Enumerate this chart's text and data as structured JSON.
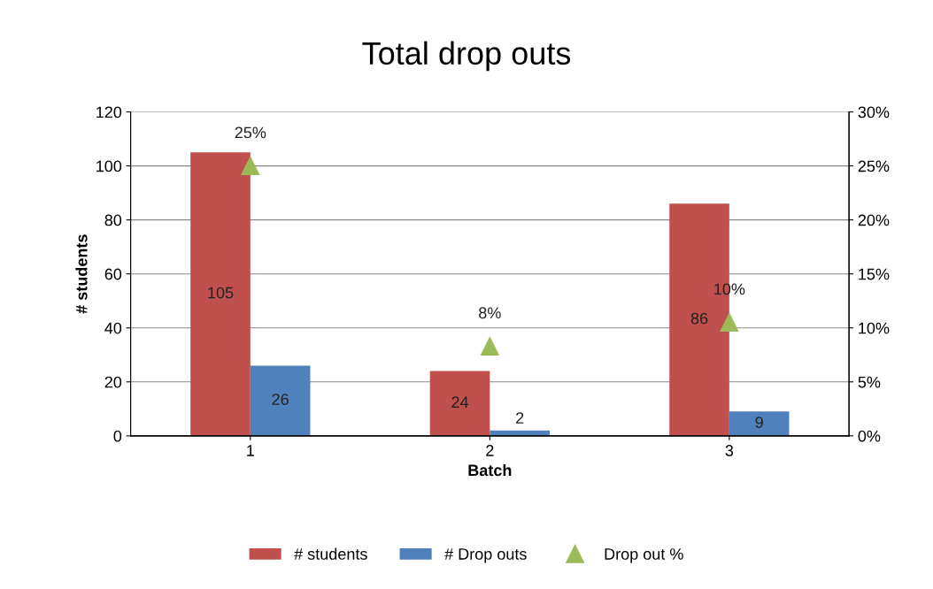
{
  "chart_data": {
    "type": "bar",
    "title": "Total drop outs",
    "xlabel": "Batch",
    "ylabel": "# students",
    "categories": [
      "1",
      "2",
      "3"
    ],
    "series": [
      {
        "name": "# students",
        "color": "#c0504d",
        "values": [
          105,
          24,
          86
        ],
        "value_labels": [
          "105",
          "24",
          "86"
        ]
      },
      {
        "name": "# Drop outs",
        "color": "#4f81bd",
        "values": [
          26,
          2,
          9
        ],
        "value_labels": [
          "26",
          "2",
          "9"
        ]
      },
      {
        "name": "Drop out %",
        "type": "scatter",
        "axis": "y2",
        "color": "#9bbb59",
        "values": [
          25,
          8.3,
          10.5
        ],
        "value_labels": [
          "25%",
          "8%",
          "10%"
        ]
      }
    ],
    "ylim": [
      0,
      120
    ],
    "yticks": [
      0,
      20,
      40,
      60,
      80,
      100,
      120
    ],
    "y2lim": [
      0,
      30
    ],
    "y2ticks": [
      {
        "value": 0,
        "label": "0%"
      },
      {
        "value": 5,
        "label": "5%"
      },
      {
        "value": 10,
        "label": "10%"
      },
      {
        "value": 15,
        "label": "15%"
      },
      {
        "value": 20,
        "label": "20%"
      },
      {
        "value": 25,
        "label": "25%"
      },
      {
        "value": 30,
        "label": "30%"
      }
    ],
    "grid": "y",
    "legend": "bottom",
    "marker": "triangle"
  }
}
